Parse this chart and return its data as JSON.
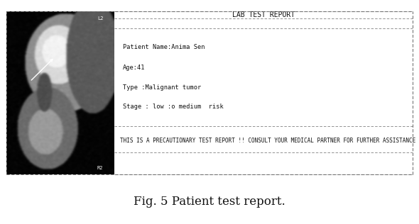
{
  "fig_width": 5.9,
  "fig_height": 3.16,
  "dpi": 100,
  "bg_color": "#ffffff",
  "title": "Fig. 5 Patient test report.",
  "title_fontsize": 12,
  "report_title": "LAB TEST REPORT",
  "report_title_fontsize": 7,
  "line1": "Patient Name:Anima Sen",
  "line2": "Age:41",
  "line3": "Type :Malignant tumor",
  "line4": "Stage : low :o medium  risk",
  "footer": "THIS IS A PRECAUTIONARY TEST REPORT !! CONSULT YOUR MEDICAL PARTNER FOR FURTHER ASSISTANCE",
  "text_fontsize": 6.2,
  "footer_fontsize": 5.5,
  "text_color": "#111111",
  "dashed_color": "#666666",
  "label_L2": "L2",
  "label_R2": "R2",
  "label_color": "#ffffff",
  "label_fontsize": 5
}
